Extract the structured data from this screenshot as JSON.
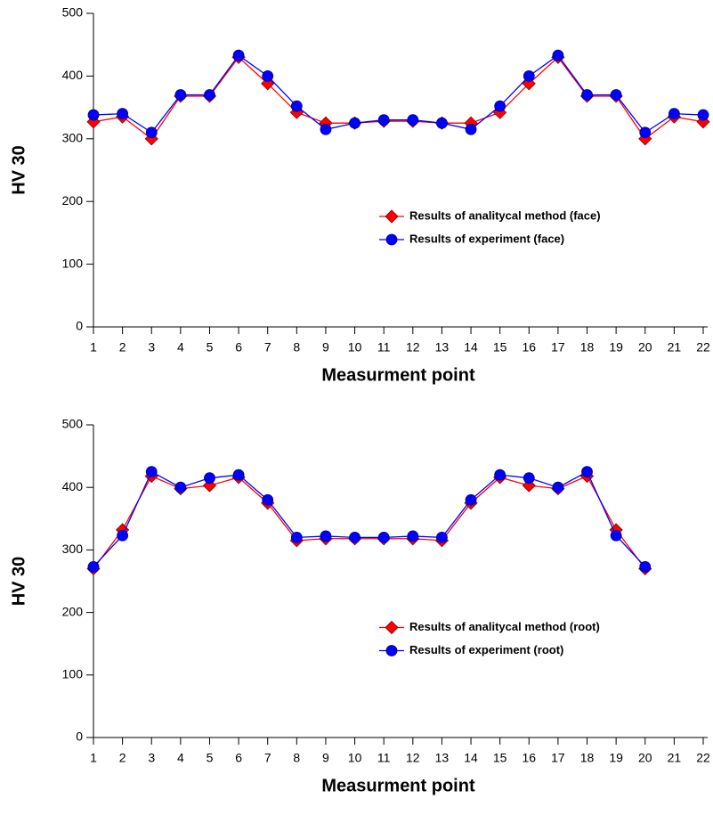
{
  "chart_data": [
    {
      "type": "line",
      "ylabel": "HV 30",
      "xlabel": "Measurment point",
      "legend": "center right",
      "x": [
        1,
        2,
        3,
        4,
        5,
        6,
        7,
        8,
        9,
        10,
        11,
        12,
        13,
        14,
        15,
        16,
        17,
        18,
        19,
        20,
        21,
        22
      ],
      "xlim": [
        1,
        22
      ],
      "xticks": [
        1,
        2,
        3,
        4,
        5,
        6,
        7,
        8,
        9,
        10,
        11,
        12,
        13,
        14,
        15,
        16,
        17,
        18,
        19,
        20,
        21,
        22
      ],
      "ylim": [
        0,
        500
      ],
      "yticks": [
        0,
        100,
        200,
        300,
        400,
        500
      ],
      "series": [
        {
          "name": "Results of analitycal method (face)",
          "color": "#ff0000",
          "marker": "diamond",
          "values": [
            327,
            335,
            300,
            368,
            368,
            430,
            388,
            342,
            325,
            325,
            328,
            328,
            325,
            325,
            342,
            388,
            430,
            368,
            368,
            300,
            335,
            327
          ]
        },
        {
          "name": "Results of experiment (face)",
          "color": "#0000ff",
          "marker": "circle",
          "values": [
            338,
            340,
            310,
            370,
            370,
            433,
            400,
            352,
            315,
            325,
            330,
            330,
            325,
            315,
            352,
            400,
            433,
            370,
            370,
            310,
            340,
            338
          ]
        }
      ]
    },
    {
      "type": "line",
      "ylabel": "HV 30",
      "xlabel": "Measurment point",
      "legend": "center right",
      "x": [
        1,
        2,
        3,
        4,
        5,
        6,
        7,
        8,
        9,
        10,
        11,
        12,
        13,
        14,
        15,
        16,
        17,
        18,
        19,
        20
      ],
      "xlim": [
        1,
        22
      ],
      "xticks": [
        1,
        2,
        3,
        4,
        5,
        6,
        7,
        8,
        9,
        10,
        11,
        12,
        13,
        14,
        15,
        16,
        17,
        18,
        19,
        20,
        21,
        22
      ],
      "ylim": [
        0,
        500
      ],
      "yticks": [
        0,
        100,
        200,
        300,
        400,
        500
      ],
      "series": [
        {
          "name": "Results of analitycal method (root)",
          "color": "#ff0000",
          "marker": "diamond",
          "values": [
            270,
            332,
            418,
            398,
            403,
            416,
            375,
            315,
            318,
            318,
            318,
            318,
            315,
            375,
            416,
            403,
            398,
            418,
            332,
            270
          ]
        },
        {
          "name": "Results of experiment (root)",
          "color": "#0000ff",
          "marker": "circle",
          "values": [
            273,
            323,
            425,
            400,
            415,
            420,
            380,
            320,
            322,
            320,
            320,
            322,
            320,
            380,
            420,
            415,
            400,
            425,
            323,
            273
          ]
        }
      ]
    }
  ]
}
